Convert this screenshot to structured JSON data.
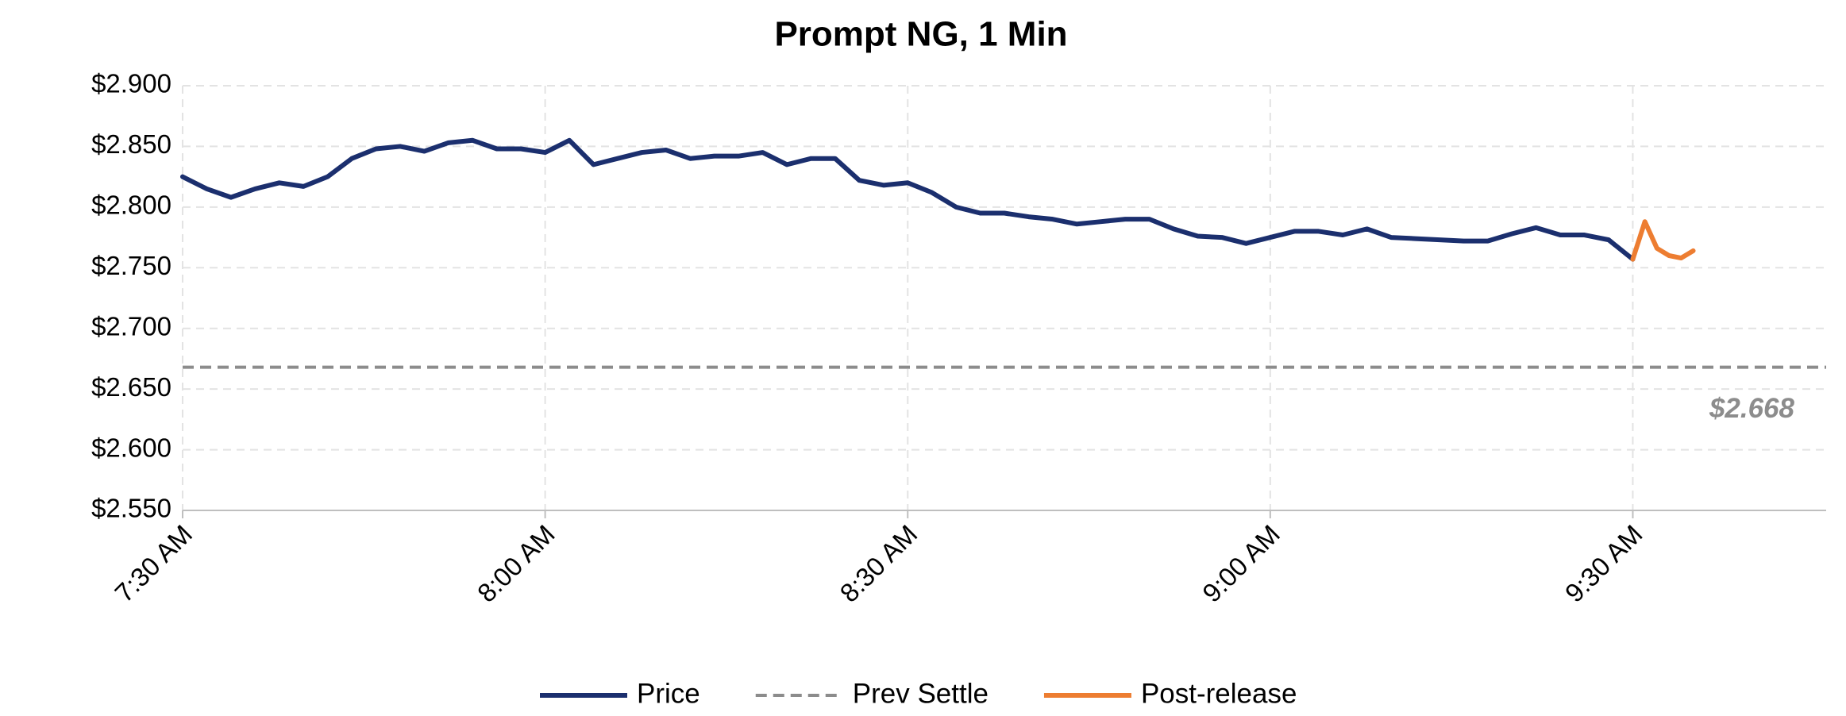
{
  "chart_data": {
    "type": "line",
    "title": "Prompt NG, 1 Min",
    "xlim": [
      "7:30 AM",
      "9:46 AM"
    ],
    "xticks": [
      "7:30 AM",
      "8:00 AM",
      "8:30 AM",
      "9:00 AM",
      "9:30 AM"
    ],
    "ylim": [
      2.55,
      2.9
    ],
    "yticks": [
      {
        "value": 2.55,
        "label": "$2.550"
      },
      {
        "value": 2.6,
        "label": "$2.600"
      },
      {
        "value": 2.65,
        "label": "$2.650"
      },
      {
        "value": 2.7,
        "label": "$2.700"
      },
      {
        "value": 2.75,
        "label": "$2.750"
      },
      {
        "value": 2.8,
        "label": "$2.800"
      },
      {
        "value": 2.85,
        "label": "$2.850"
      },
      {
        "value": 2.9,
        "label": "$2.900"
      }
    ],
    "grid": true,
    "legend": "bottom",
    "series": [
      {
        "name": "Price",
        "color": "#1b2f6e",
        "x": [
          "7:30 AM",
          "7:32 AM",
          "7:34 AM",
          "7:36 AM",
          "7:38 AM",
          "7:40 AM",
          "7:42 AM",
          "7:44 AM",
          "7:46 AM",
          "7:48 AM",
          "7:50 AM",
          "7:52 AM",
          "7:54 AM",
          "7:56 AM",
          "7:58 AM",
          "8:00 AM",
          "8:02 AM",
          "8:04 AM",
          "8:06 AM",
          "8:08 AM",
          "8:10 AM",
          "8:12 AM",
          "8:14 AM",
          "8:16 AM",
          "8:18 AM",
          "8:20 AM",
          "8:22 AM",
          "8:24 AM",
          "8:26 AM",
          "8:28 AM",
          "8:30 AM",
          "8:32 AM",
          "8:34 AM",
          "8:36 AM",
          "8:38 AM",
          "8:40 AM",
          "8:42 AM",
          "8:44 AM",
          "8:46 AM",
          "8:48 AM",
          "8:50 AM",
          "8:52 AM",
          "8:54 AM",
          "8:56 AM",
          "8:58 AM",
          "9:00 AM",
          "9:02 AM",
          "9:04 AM",
          "9:06 AM",
          "9:08 AM",
          "9:10 AM",
          "9:12 AM",
          "9:14 AM",
          "9:16 AM",
          "9:18 AM",
          "9:20 AM",
          "9:22 AM",
          "9:24 AM",
          "9:26 AM",
          "9:28 AM",
          "9:30 AM"
        ],
        "values": [
          2.825,
          2.815,
          2.808,
          2.815,
          2.82,
          2.817,
          2.825,
          2.84,
          2.848,
          2.85,
          2.846,
          2.853,
          2.855,
          2.848,
          2.848,
          2.845,
          2.855,
          2.835,
          2.84,
          2.845,
          2.847,
          2.84,
          2.842,
          2.842,
          2.845,
          2.835,
          2.84,
          2.84,
          2.822,
          2.818,
          2.82,
          2.812,
          2.8,
          2.795,
          2.795,
          2.792,
          2.79,
          2.786,
          2.788,
          2.79,
          2.79,
          2.782,
          2.776,
          2.775,
          2.77,
          2.775,
          2.78,
          2.78,
          2.777,
          2.782,
          2.775,
          2.774,
          2.773,
          2.772,
          2.772,
          2.778,
          2.783,
          2.777,
          2.777,
          2.773,
          2.757
        ]
      },
      {
        "name": "Prev Settle",
        "color": "#8c8c8c",
        "style": "dashed",
        "value": 2.668,
        "value_label": "$2.668"
      },
      {
        "name": "Post-release",
        "color": "#ed7d31",
        "x": [
          "9:30 AM",
          "9:31 AM",
          "9:32 AM",
          "9:33 AM",
          "9:34 AM",
          "9:35 AM"
        ],
        "values": [
          2.757,
          2.788,
          2.766,
          2.76,
          2.758,
          2.764
        ]
      }
    ]
  }
}
